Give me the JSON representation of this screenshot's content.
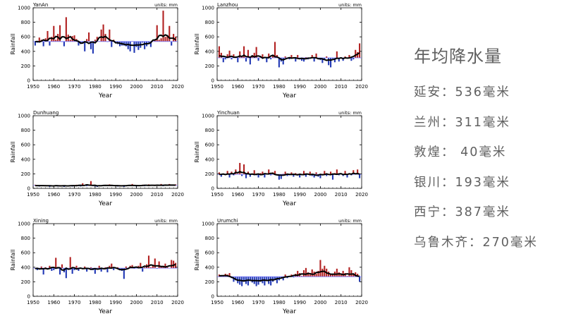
{
  "summary": {
    "title": "年均降水量",
    "lines": [
      "延安：536毫米",
      "兰州：311毫米",
      "敦煌： 40毫米",
      "银川：193毫米",
      "西宁：387毫米",
      "乌鲁木齐：270毫米"
    ]
  },
  "colors": {
    "above": "#b22222",
    "below": "#2239b5",
    "line": "#000000",
    "mean": "#7a7aff"
  },
  "chart_data": [
    {
      "type": "bar",
      "title": "YanAn",
      "units": "units: mm",
      "xlabel": "Year",
      "ylabel": "Rainfall",
      "xlim": [
        1950,
        2020
      ],
      "ylim": [
        0,
        1000
      ],
      "xticks": [
        1950,
        1960,
        1970,
        1980,
        1990,
        2000,
        2010,
        2020
      ],
      "yticks": [
        0,
        200,
        400,
        600,
        800,
        1000
      ],
      "mean": 536,
      "x": [
        1951,
        1952,
        1953,
        1954,
        1955,
        1956,
        1957,
        1958,
        1959,
        1960,
        1961,
        1962,
        1963,
        1964,
        1965,
        1966,
        1967,
        1968,
        1969,
        1970,
        1971,
        1972,
        1973,
        1974,
        1975,
        1976,
        1977,
        1978,
        1979,
        1980,
        1981,
        1982,
        1983,
        1984,
        1985,
        1986,
        1987,
        1988,
        1989,
        1990,
        1991,
        1992,
        1993,
        1994,
        1995,
        1996,
        1997,
        1998,
        1999,
        2000,
        2001,
        2002,
        2003,
        2004,
        2005,
        2006,
        2007,
        2008,
        2009,
        2010,
        2011,
        2012,
        2013,
        2014,
        2015,
        2016,
        2017,
        2018,
        2019
      ],
      "values": [
        480,
        520,
        590,
        560,
        470,
        580,
        680,
        480,
        600,
        750,
        560,
        640,
        760,
        530,
        470,
        870,
        630,
        560,
        610,
        620,
        570,
        480,
        500,
        520,
        400,
        570,
        660,
        430,
        370,
        560,
        600,
        540,
        700,
        770,
        640,
        530,
        700,
        460,
        560,
        520,
        500,
        470,
        480,
        480,
        470,
        430,
        400,
        540,
        380,
        460,
        420,
        450,
        520,
        430,
        470,
        520,
        460,
        540,
        560,
        760,
        560,
        580,
        960,
        600,
        620,
        750,
        480,
        640,
        600
      ]
    },
    {
      "type": "bar",
      "title": "Lanzhou",
      "units": "units: mm",
      "xlabel": "Year",
      "ylabel": "Rainfall",
      "xlim": [
        1950,
        2020
      ],
      "ylim": [
        0,
        1000
      ],
      "xticks": [
        1950,
        1960,
        1970,
        1980,
        1990,
        2000,
        2010,
        2020
      ],
      "yticks": [
        0,
        200,
        400,
        600,
        800,
        1000
      ],
      "mean": 311,
      "x": [
        1951,
        1952,
        1953,
        1954,
        1955,
        1956,
        1957,
        1958,
        1959,
        1960,
        1961,
        1962,
        1963,
        1964,
        1965,
        1966,
        1967,
        1968,
        1969,
        1970,
        1971,
        1972,
        1973,
        1974,
        1975,
        1976,
        1977,
        1978,
        1979,
        1980,
        1981,
        1982,
        1983,
        1984,
        1985,
        1986,
        1987,
        1988,
        1989,
        1990,
        1991,
        1992,
        1993,
        1994,
        1995,
        1996,
        1997,
        1998,
        1999,
        2000,
        2001,
        2002,
        2003,
        2004,
        2005,
        2006,
        2007,
        2008,
        2009,
        2010,
        2011,
        2012,
        2013,
        2014,
        2015,
        2016,
        2017,
        2018,
        2019
      ],
      "values": [
        470,
        380,
        250,
        290,
        360,
        410,
        290,
        360,
        330,
        250,
        400,
        340,
        470,
        260,
        420,
        220,
        330,
        380,
        460,
        270,
        320,
        360,
        310,
        250,
        370,
        290,
        340,
        530,
        350,
        180,
        260,
        220,
        330,
        310,
        290,
        350,
        300,
        260,
        350,
        300,
        270,
        260,
        320,
        290,
        300,
        350,
        260,
        370,
        290,
        280,
        240,
        280,
        330,
        210,
        180,
        300,
        250,
        400,
        260,
        300,
        270,
        330,
        300,
        350,
        270,
        290,
        420,
        390,
        510
      ]
    },
    {
      "type": "bar",
      "title": "Dunhuang",
      "units": "",
      "xlabel": "Year",
      "ylabel": "Rainfall",
      "xlim": [
        1950,
        2020
      ],
      "ylim": [
        0,
        1000
      ],
      "xticks": [
        1950,
        1960,
        1970,
        1980,
        1990,
        2000,
        2010,
        2020
      ],
      "yticks": [
        0,
        200,
        400,
        600,
        800,
        1000
      ],
      "mean": 40,
      "x": [
        1951,
        1952,
        1953,
        1954,
        1955,
        1956,
        1957,
        1958,
        1959,
        1960,
        1961,
        1962,
        1963,
        1964,
        1965,
        1966,
        1967,
        1968,
        1969,
        1970,
        1971,
        1972,
        1973,
        1974,
        1975,
        1976,
        1977,
        1978,
        1979,
        1980,
        1981,
        1982,
        1983,
        1984,
        1985,
        1986,
        1987,
        1988,
        1989,
        1990,
        1991,
        1992,
        1993,
        1994,
        1995,
        1996,
        1997,
        1998,
        1999,
        2000,
        2001,
        2002,
        2003,
        2004,
        2005,
        2006,
        2007,
        2008,
        2009,
        2010,
        2011,
        2012,
        2013,
        2014,
        2015,
        2016,
        2017,
        2018,
        2019
      ],
      "values": [
        50,
        30,
        25,
        40,
        35,
        45,
        30,
        20,
        40,
        35,
        30,
        25,
        45,
        30,
        20,
        40,
        35,
        30,
        25,
        40,
        50,
        30,
        25,
        70,
        45,
        30,
        40,
        100,
        30,
        25,
        20,
        45,
        35,
        40,
        30,
        50,
        55,
        30,
        40,
        35,
        25,
        45,
        30,
        20,
        40,
        35,
        45,
        60,
        30,
        25,
        35,
        40,
        50,
        30,
        45,
        55,
        40,
        35,
        50,
        45,
        40,
        60,
        30,
        45,
        50,
        60,
        45,
        40,
        55
      ]
    },
    {
      "type": "bar",
      "title": "Yinchuan",
      "units": "units: mm",
      "xlabel": "Year",
      "ylabel": "Rainfall",
      "xlim": [
        1950,
        2020
      ],
      "ylim": [
        0,
        1000
      ],
      "xticks": [
        1950,
        1960,
        1970,
        1980,
        1990,
        2000,
        2010,
        2020
      ],
      "yticks": [
        0,
        200,
        400,
        600,
        800,
        1000
      ],
      "mean": 193,
      "x": [
        1951,
        1952,
        1953,
        1954,
        1955,
        1956,
        1957,
        1958,
        1959,
        1960,
        1961,
        1962,
        1963,
        1964,
        1965,
        1966,
        1967,
        1968,
        1969,
        1970,
        1971,
        1972,
        1973,
        1974,
        1975,
        1976,
        1977,
        1978,
        1979,
        1980,
        1981,
        1982,
        1983,
        1984,
        1985,
        1986,
        1987,
        1988,
        1989,
        1990,
        1991,
        1992,
        1993,
        1994,
        1995,
        1996,
        1997,
        1998,
        1999,
        2000,
        2001,
        2002,
        2003,
        2004,
        2005,
        2006,
        2007,
        2008,
        2009,
        2010,
        2011,
        2012,
        2013,
        2014,
        2015,
        2016,
        2017,
        2018,
        2019
      ],
      "values": [
        220,
        160,
        190,
        200,
        240,
        150,
        230,
        180,
        260,
        200,
        350,
        170,
        330,
        140,
        230,
        160,
        190,
        250,
        180,
        150,
        210,
        230,
        150,
        200,
        260,
        180,
        220,
        240,
        190,
        120,
        130,
        200,
        230,
        170,
        180,
        220,
        160,
        210,
        200,
        150,
        180,
        240,
        160,
        200,
        230,
        170,
        150,
        220,
        160,
        140,
        200,
        240,
        170,
        190,
        230,
        120,
        210,
        260,
        180,
        200,
        170,
        240,
        150,
        210,
        180,
        250,
        200,
        260,
        140
      ]
    },
    {
      "type": "bar",
      "title": "Xining",
      "units": "units: mm",
      "xlabel": "Year",
      "ylabel": "Rainfall",
      "xlim": [
        1950,
        2020
      ],
      "ylim": [
        0,
        1000
      ],
      "xticks": [
        1950,
        1960,
        1970,
        1980,
        1990,
        2000,
        2010,
        2020
      ],
      "yticks": [
        0,
        200,
        400,
        600,
        800,
        1000
      ],
      "mean": 387,
      "x": [
        1951,
        1952,
        1953,
        1954,
        1955,
        1956,
        1957,
        1958,
        1959,
        1960,
        1961,
        1962,
        1963,
        1964,
        1965,
        1966,
        1967,
        1968,
        1969,
        1970,
        1971,
        1972,
        1973,
        1974,
        1975,
        1976,
        1977,
        1978,
        1979,
        1980,
        1981,
        1982,
        1983,
        1984,
        1985,
        1986,
        1987,
        1988,
        1989,
        1990,
        1991,
        1992,
        1993,
        1994,
        1995,
        1996,
        1997,
        1998,
        1999,
        2000,
        2001,
        2002,
        2003,
        2004,
        2005,
        2006,
        2007,
        2008,
        2009,
        2010,
        2011,
        2012,
        2013,
        2014,
        2015,
        2016,
        2017,
        2018,
        2019
      ],
      "values": [
        380,
        360,
        390,
        410,
        300,
        400,
        370,
        420,
        350,
        360,
        530,
        380,
        300,
        440,
        330,
        250,
        380,
        540,
        310,
        360,
        420,
        350,
        390,
        380,
        410,
        340,
        380,
        400,
        360,
        310,
        390,
        420,
        340,
        380,
        400,
        330,
        420,
        450,
        360,
        390,
        400,
        370,
        350,
        240,
        410,
        390,
        420,
        430,
        380,
        390,
        420,
        460,
        340,
        400,
        440,
        560,
        400,
        430,
        520,
        380,
        480,
        420,
        410,
        450,
        400,
        390,
        500,
        490,
        460
      ]
    },
    {
      "type": "bar",
      "title": "Urumchi",
      "units": "units: mm",
      "xlabel": "Year",
      "ylabel": "Rainfall",
      "xlim": [
        1950,
        2020
      ],
      "ylim": [
        0,
        1000
      ],
      "xticks": [
        1950,
        1960,
        1970,
        1980,
        1990,
        2000,
        2010,
        2020
      ],
      "yticks": [
        0,
        200,
        400,
        600,
        800,
        1000
      ],
      "mean": 270,
      "x": [
        1951,
        1952,
        1953,
        1954,
        1955,
        1956,
        1957,
        1958,
        1959,
        1960,
        1961,
        1962,
        1963,
        1964,
        1965,
        1966,
        1967,
        1968,
        1969,
        1970,
        1971,
        1972,
        1973,
        1974,
        1975,
        1976,
        1977,
        1978,
        1979,
        1980,
        1981,
        1982,
        1983,
        1984,
        1985,
        1986,
        1987,
        1988,
        1989,
        1990,
        1991,
        1992,
        1993,
        1994,
        1995,
        1996,
        1997,
        1998,
        1999,
        2000,
        2001,
        2002,
        2003,
        2004,
        2005,
        2006,
        2007,
        2008,
        2009,
        2010,
        2011,
        2012,
        2013,
        2014,
        2015,
        2016,
        2017,
        2018,
        2019
      ],
      "values": [
        300,
        290,
        280,
        310,
        300,
        320,
        250,
        200,
        220,
        180,
        160,
        140,
        200,
        170,
        150,
        210,
        190,
        170,
        140,
        160,
        200,
        180,
        150,
        220,
        170,
        150,
        200,
        240,
        180,
        220,
        260,
        220,
        300,
        250,
        280,
        300,
        260,
        310,
        350,
        320,
        280,
        360,
        390,
        330,
        300,
        370,
        340,
        310,
        350,
        500,
        380,
        420,
        380,
        340,
        300,
        310,
        340,
        380,
        330,
        310,
        350,
        320,
        280,
        400,
        360,
        300,
        330,
        310,
        200
      ]
    }
  ]
}
